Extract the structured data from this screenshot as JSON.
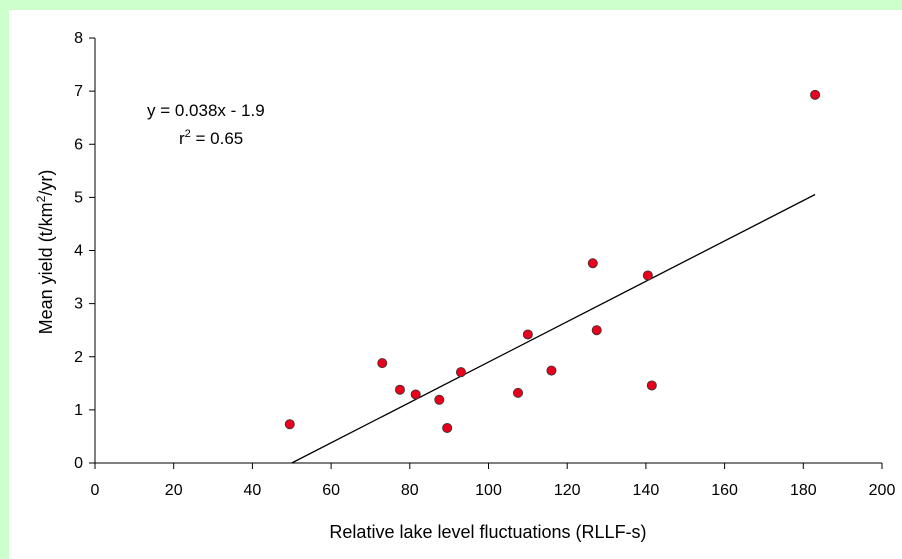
{
  "chart_data": {
    "type": "scatter",
    "xlabel": "Relative lake level fluctuations (RLLF-s)",
    "ylabel_parts": [
      "Mean yield (t/km",
      "2",
      "/yr)"
    ],
    "xlim": [
      0,
      200
    ],
    "ylim": [
      0,
      8
    ],
    "x_ticks": [
      "0",
      "20",
      "40",
      "60",
      "80",
      "100",
      "120",
      "140",
      "160",
      "180",
      "200"
    ],
    "y_ticks": [
      "0",
      "1",
      "2",
      "3",
      "4",
      "5",
      "6",
      "7",
      "8"
    ],
    "grid": false,
    "legend": "none",
    "marker_color": "#e8001c",
    "series": [
      {
        "points": [
          {
            "x": 49.5,
            "y": 0.73
          },
          {
            "x": 73,
            "y": 1.88
          },
          {
            "x": 77.5,
            "y": 1.38
          },
          {
            "x": 81.5,
            "y": 1.29
          },
          {
            "x": 87.5,
            "y": 1.19
          },
          {
            "x": 89.5,
            "y": 0.66
          },
          {
            "x": 93,
            "y": 1.71
          },
          {
            "x": 107.5,
            "y": 1.32
          },
          {
            "x": 110,
            "y": 2.42
          },
          {
            "x": 116,
            "y": 1.74
          },
          {
            "x": 126.5,
            "y": 3.76
          },
          {
            "x": 127.5,
            "y": 2.5
          },
          {
            "x": 140.5,
            "y": 3.53
          },
          {
            "x": 141.5,
            "y": 1.46
          },
          {
            "x": 183,
            "y": 6.93
          }
        ]
      }
    ],
    "trendline": {
      "slope": 0.038,
      "intercept": -1.9,
      "x_start": 50,
      "x_end": 183
    },
    "annotation": {
      "equation": "y = 0.038x - 1.9",
      "r2_prefix": "r",
      "r2_sup": "2",
      "r2_value": " = 0.65"
    }
  }
}
